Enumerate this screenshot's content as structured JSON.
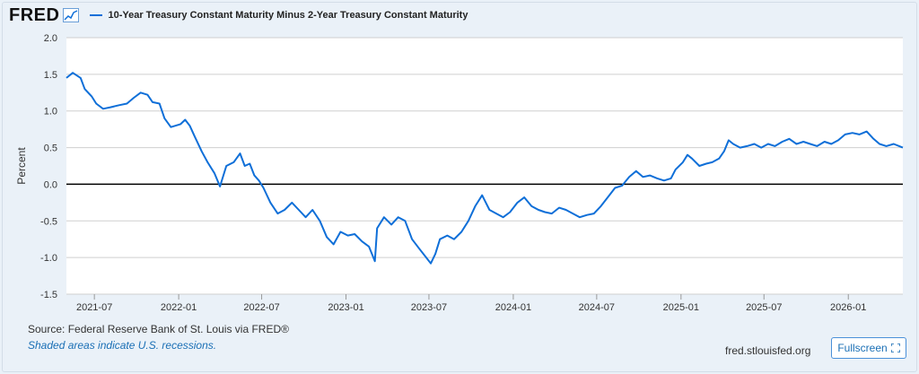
{
  "header": {
    "logo_text": "FRED",
    "legend_label": "10-Year Treasury Constant Maturity Minus 2-Year Treasury Constant Maturity"
  },
  "colors": {
    "series": "#0f6fd8",
    "zero_line": "#000000",
    "gridline": "#cfcfcf",
    "plot_background": "#ffffff",
    "page_background": "#eaf1f8"
  },
  "footer": {
    "source": "Source: Federal Reserve Bank of St. Louis via FRED®",
    "note": "Shaded areas indicate U.S. recessions.",
    "site": "fred.stlouisfed.org",
    "fullscreen_label": "Fullscreen"
  },
  "chart_data": {
    "type": "line",
    "ylabel": "Percent",
    "ylim": [
      -1.5,
      2.0
    ],
    "yticks": [
      "2.0",
      "1.5",
      "1.0",
      "0.5",
      "0.0",
      "-0.5",
      "-1.0",
      "-1.5"
    ],
    "xticks": [
      "2021-07",
      "2022-01",
      "2022-07",
      "2023-01",
      "2023-07",
      "2024-01",
      "2024-07",
      "2025-01",
      "2025-07",
      "2026-01"
    ],
    "xlim": [
      "2021-05-01",
      "2026-04-30"
    ],
    "grid": true,
    "zero_line": true,
    "series": [
      {
        "values": [
          [
            "2021-05-01",
            1.45
          ],
          [
            "2021-05-15",
            1.52
          ],
          [
            "2021-06-01",
            1.45
          ],
          [
            "2021-06-10",
            1.3
          ],
          [
            "2021-06-25",
            1.2
          ],
          [
            "2021-07-05",
            1.1
          ],
          [
            "2021-07-20",
            1.03
          ],
          [
            "2021-08-05",
            1.05
          ],
          [
            "2021-08-25",
            1.08
          ],
          [
            "2021-09-10",
            1.1
          ],
          [
            "2021-09-25",
            1.18
          ],
          [
            "2021-10-10",
            1.25
          ],
          [
            "2021-10-25",
            1.22
          ],
          [
            "2021-11-05",
            1.12
          ],
          [
            "2021-11-20",
            1.1
          ],
          [
            "2021-12-01",
            0.9
          ],
          [
            "2021-12-15",
            0.78
          ],
          [
            "2022-01-05",
            0.82
          ],
          [
            "2022-01-15",
            0.88
          ],
          [
            "2022-01-25",
            0.8
          ],
          [
            "2022-02-05",
            0.65
          ],
          [
            "2022-02-20",
            0.45
          ],
          [
            "2022-03-05",
            0.3
          ],
          [
            "2022-03-20",
            0.15
          ],
          [
            "2022-04-01",
            -0.03
          ],
          [
            "2022-04-15",
            0.25
          ],
          [
            "2022-05-01",
            0.3
          ],
          [
            "2022-05-15",
            0.42
          ],
          [
            "2022-05-25",
            0.25
          ],
          [
            "2022-06-05",
            0.28
          ],
          [
            "2022-06-15",
            0.12
          ],
          [
            "2022-06-25",
            0.05
          ],
          [
            "2022-07-05",
            -0.05
          ],
          [
            "2022-07-20",
            -0.25
          ],
          [
            "2022-08-05",
            -0.4
          ],
          [
            "2022-08-20",
            -0.35
          ],
          [
            "2022-09-05",
            -0.25
          ],
          [
            "2022-09-20",
            -0.35
          ],
          [
            "2022-10-05",
            -0.45
          ],
          [
            "2022-10-20",
            -0.35
          ],
          [
            "2022-11-05",
            -0.5
          ],
          [
            "2022-11-20",
            -0.72
          ],
          [
            "2022-12-05",
            -0.82
          ],
          [
            "2022-12-20",
            -0.65
          ],
          [
            "2023-01-05",
            -0.7
          ],
          [
            "2023-01-20",
            -0.68
          ],
          [
            "2023-02-05",
            -0.78
          ],
          [
            "2023-02-20",
            -0.85
          ],
          [
            "2023-03-05",
            -1.05
          ],
          [
            "2023-03-10",
            -0.6
          ],
          [
            "2023-03-25",
            -0.45
          ],
          [
            "2023-04-10",
            -0.55
          ],
          [
            "2023-04-25",
            -0.45
          ],
          [
            "2023-05-10",
            -0.5
          ],
          [
            "2023-05-25",
            -0.75
          ],
          [
            "2023-06-10",
            -0.88
          ],
          [
            "2023-06-25",
            -1.0
          ],
          [
            "2023-07-05",
            -1.08
          ],
          [
            "2023-07-15",
            -0.95
          ],
          [
            "2023-07-25",
            -0.75
          ],
          [
            "2023-08-10",
            -0.7
          ],
          [
            "2023-08-25",
            -0.75
          ],
          [
            "2023-09-10",
            -0.65
          ],
          [
            "2023-09-25",
            -0.5
          ],
          [
            "2023-10-10",
            -0.3
          ],
          [
            "2023-10-25",
            -0.15
          ],
          [
            "2023-11-10",
            -0.35
          ],
          [
            "2023-11-25",
            -0.4
          ],
          [
            "2023-12-10",
            -0.45
          ],
          [
            "2023-12-25",
            -0.38
          ],
          [
            "2024-01-10",
            -0.25
          ],
          [
            "2024-01-25",
            -0.18
          ],
          [
            "2024-02-10",
            -0.3
          ],
          [
            "2024-02-25",
            -0.35
          ],
          [
            "2024-03-10",
            -0.38
          ],
          [
            "2024-03-25",
            -0.4
          ],
          [
            "2024-04-10",
            -0.32
          ],
          [
            "2024-04-25",
            -0.35
          ],
          [
            "2024-05-10",
            -0.4
          ],
          [
            "2024-05-25",
            -0.45
          ],
          [
            "2024-06-10",
            -0.42
          ],
          [
            "2024-06-25",
            -0.4
          ],
          [
            "2024-07-10",
            -0.3
          ],
          [
            "2024-07-25",
            -0.18
          ],
          [
            "2024-08-10",
            -0.05
          ],
          [
            "2024-08-25",
            -0.02
          ],
          [
            "2024-09-10",
            0.1
          ],
          [
            "2024-09-25",
            0.18
          ],
          [
            "2024-10-10",
            0.1
          ],
          [
            "2024-10-25",
            0.12
          ],
          [
            "2024-11-10",
            0.08
          ],
          [
            "2024-11-25",
            0.05
          ],
          [
            "2024-12-10",
            0.08
          ],
          [
            "2024-12-20",
            0.2
          ],
          [
            "2025-01-05",
            0.3
          ],
          [
            "2025-01-15",
            0.4
          ],
          [
            "2025-01-25",
            0.35
          ],
          [
            "2025-02-10",
            0.25
          ],
          [
            "2025-02-25",
            0.28
          ],
          [
            "2025-03-10",
            0.3
          ],
          [
            "2025-03-25",
            0.35
          ],
          [
            "2025-04-05",
            0.45
          ],
          [
            "2025-04-15",
            0.6
          ],
          [
            "2025-04-25",
            0.55
          ],
          [
            "2025-05-10",
            0.5
          ],
          [
            "2025-05-25",
            0.52
          ],
          [
            "2025-06-10",
            0.55
          ],
          [
            "2025-06-25",
            0.5
          ],
          [
            "2025-07-10",
            0.55
          ],
          [
            "2025-07-25",
            0.52
          ],
          [
            "2025-08-10",
            0.58
          ],
          [
            "2025-08-25",
            0.62
          ],
          [
            "2025-09-10",
            0.55
          ],
          [
            "2025-09-25",
            0.58
          ],
          [
            "2025-10-10",
            0.55
          ],
          [
            "2025-10-25",
            0.52
          ],
          [
            "2025-11-10",
            0.58
          ],
          [
            "2025-11-25",
            0.55
          ],
          [
            "2025-12-10",
            0.6
          ],
          [
            "2025-12-25",
            0.68
          ],
          [
            "2026-01-10",
            0.7
          ],
          [
            "2026-01-25",
            0.68
          ],
          [
            "2026-02-10",
            0.72
          ],
          [
            "2026-02-25",
            0.62
          ],
          [
            "2026-03-10",
            0.55
          ],
          [
            "2026-03-25",
            0.52
          ],
          [
            "2026-04-10",
            0.55
          ],
          [
            "2026-04-30",
            0.5
          ]
        ]
      }
    ]
  }
}
